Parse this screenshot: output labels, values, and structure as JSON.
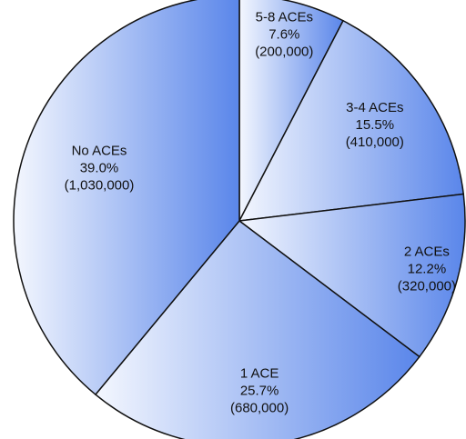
{
  "chart_data": {
    "type": "pie",
    "title": "",
    "slices": [
      {
        "name": "5-8 ACEs",
        "percent": "7.6%",
        "count": "(200,000)",
        "value": 7.6
      },
      {
        "name": "3-4 ACEs",
        "percent": "15.5%",
        "count": "(410,000)",
        "value": 15.5
      },
      {
        "name": "2 ACEs",
        "percent": "12.2%",
        "count": "(320,000)",
        "value": 12.2
      },
      {
        "name": "1 ACE",
        "percent": "25.7%",
        "count": "(680,000)",
        "value": 25.7
      },
      {
        "name": "No ACEs",
        "percent": "39.0%",
        "count": "(1,030,000)",
        "value": 39.0
      }
    ],
    "start_angle_deg": 0,
    "direction": "clockwise",
    "colors": {
      "gradient_light": "#f4f7fe",
      "gradient_dark": "#5a86ea",
      "stroke": "#111111"
    }
  }
}
